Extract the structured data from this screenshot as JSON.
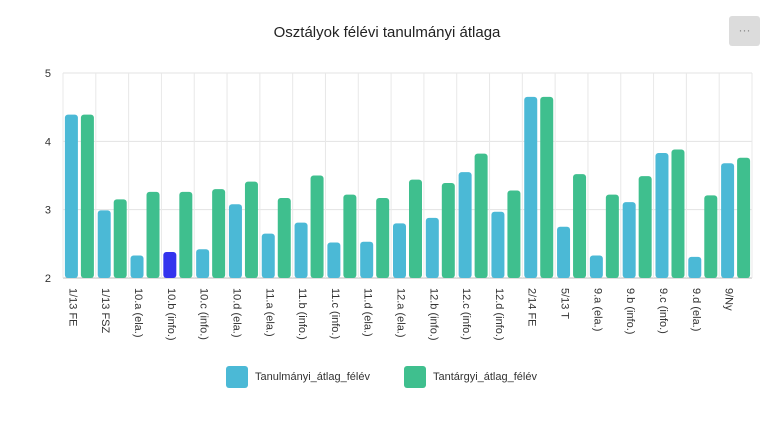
{
  "chart_data": {
    "type": "bar",
    "title": "Osztályok félévi tanulmányi átlaga",
    "categories": [
      "1/13 FE",
      "1/13 FSZ",
      "10.a (ela.)",
      "10.b (info.)",
      "10.c (info.)",
      "10.d (ela.)",
      "11.a (ela.)",
      "11.b (info.)",
      "11.c (info.)",
      "11.d (ela.)",
      "12.a (ela.)",
      "12.b (info.)",
      "12.c (info.)",
      "12.d (info.)",
      "2/14 FE",
      "5/13 T",
      "9.a (ela.)",
      "9.b (info.)",
      "9.c (info.)",
      "9.d (ela.)",
      "9/Ny"
    ],
    "series": [
      {
        "name": "Tanulmányi_átlag_félév",
        "color": "#4bb9d6",
        "values": [
          4.39,
          2.99,
          2.33,
          2.38,
          2.42,
          3.08,
          2.65,
          2.81,
          2.52,
          2.53,
          2.8,
          2.88,
          3.55,
          2.97,
          4.65,
          2.75,
          2.33,
          3.11,
          3.83,
          2.31,
          3.68
        ]
      },
      {
        "name": "Tantárgyi_átlag_félév",
        "color": "#3fbf8e",
        "values": [
          4.39,
          3.15,
          3.26,
          3.26,
          3.3,
          3.41,
          3.17,
          3.5,
          3.22,
          3.17,
          3.44,
          3.39,
          3.82,
          3.28,
          4.65,
          3.52,
          3.22,
          3.49,
          3.88,
          3.21,
          3.76
        ]
      }
    ],
    "highlight": {
      "category_index": 3,
      "color": "#3333ee"
    },
    "yticks": [
      2,
      3,
      4,
      5
    ],
    "ylim": [
      2,
      5
    ],
    "grid": true,
    "legend_position": "bottom"
  },
  "toolbar": {
    "menu_label": "···"
  }
}
